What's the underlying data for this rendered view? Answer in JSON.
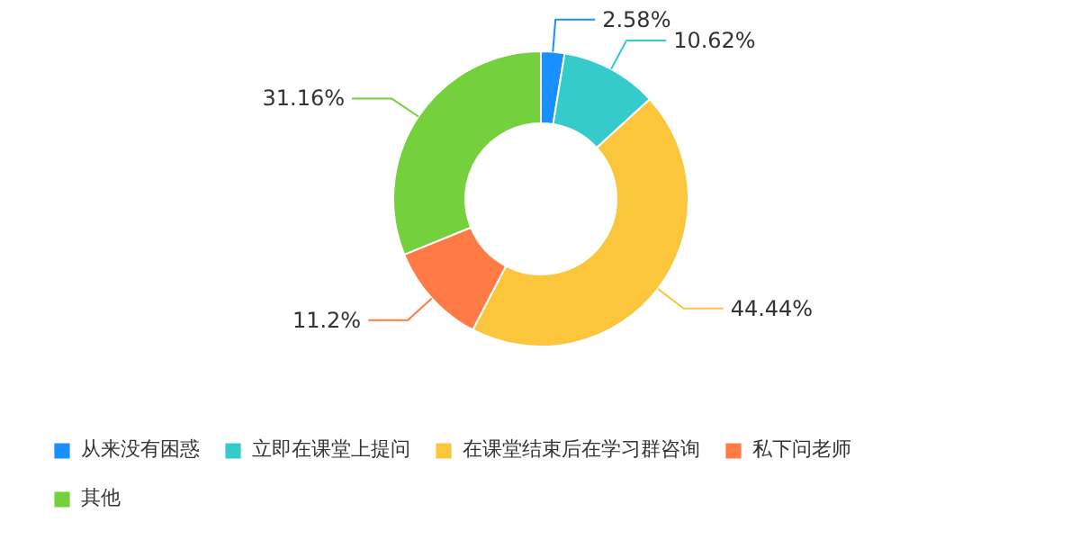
{
  "chart_data": {
    "type": "donut",
    "categories": [
      "从来没有困惑",
      "立即在课堂上提问",
      "在课堂结束后在学习群咨询",
      "私下问老师",
      "其他"
    ],
    "values": [
      2.58,
      10.62,
      44.44,
      11.2,
      31.16
    ],
    "colors": [
      "#1890ff",
      "#36cbcb",
      "#fbc53c",
      "#ff7a45",
      "#74d13d"
    ],
    "value_labels": [
      "2.58%",
      "10.62%",
      "44.44%",
      "11.2%",
      "31.16%"
    ],
    "legend": "bottom"
  }
}
